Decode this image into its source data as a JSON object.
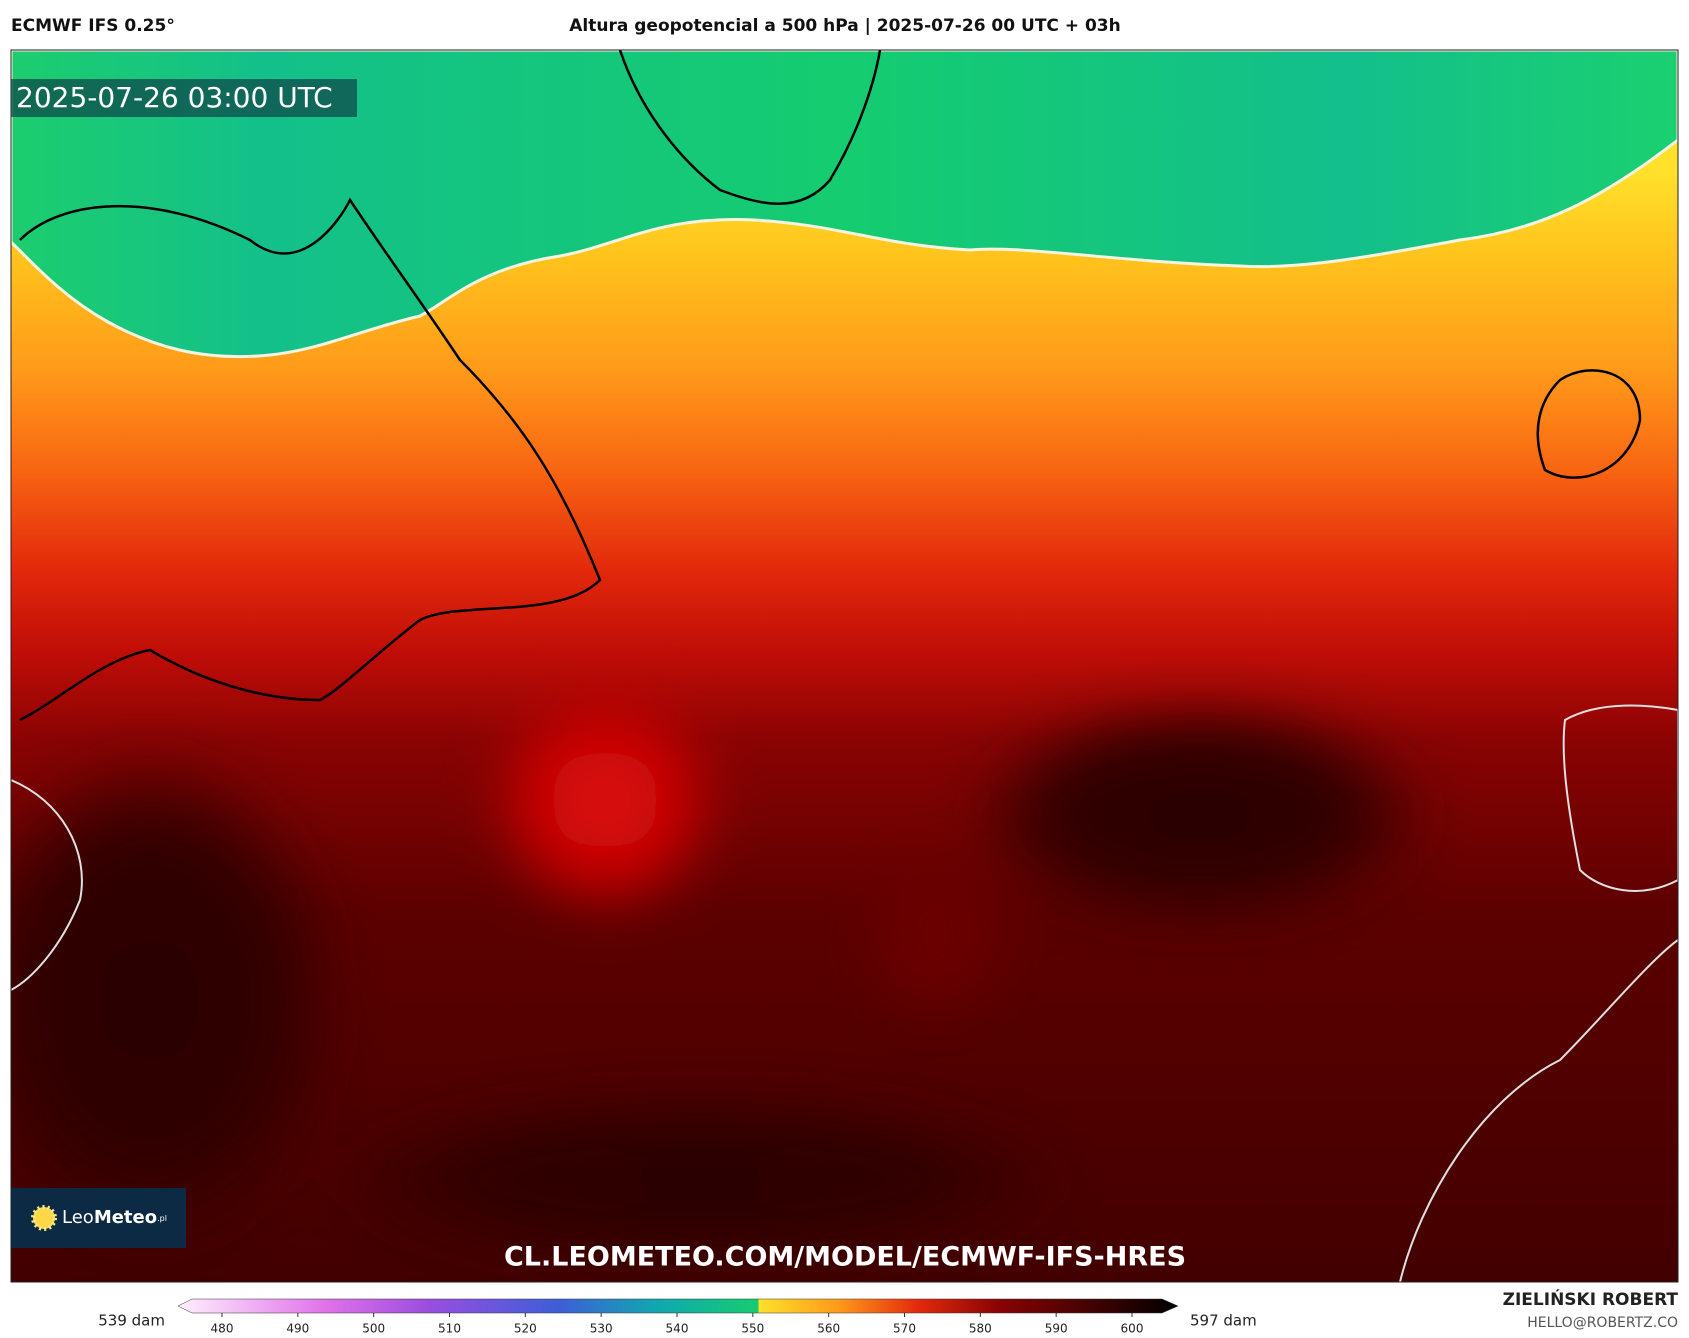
{
  "header": {
    "model": "ECMWF IFS 0.25°",
    "title": "Altura geopotencial a 500 hPa | 2025-07-26 00 UTC + 03h"
  },
  "map": {
    "timestamp": "2025-07-26 03:00 UTC",
    "watermark": "CL.LEOMETEO.COM/MODEL/ECMWF-IFS-HRES",
    "logo": {
      "name": "Leo",
      "brand": "Meteo",
      "suffix": ".pl"
    }
  },
  "colorbar": {
    "min_label": "539 dam",
    "max_label": "597 dam",
    "ticks": [
      480,
      490,
      500,
      510,
      520,
      530,
      540,
      550,
      560,
      570,
      580,
      590,
      600
    ]
  },
  "credit": {
    "author": "ZIELIŃSKI ROBERT",
    "email": "HELLO@ROBERTZ.CO"
  }
}
